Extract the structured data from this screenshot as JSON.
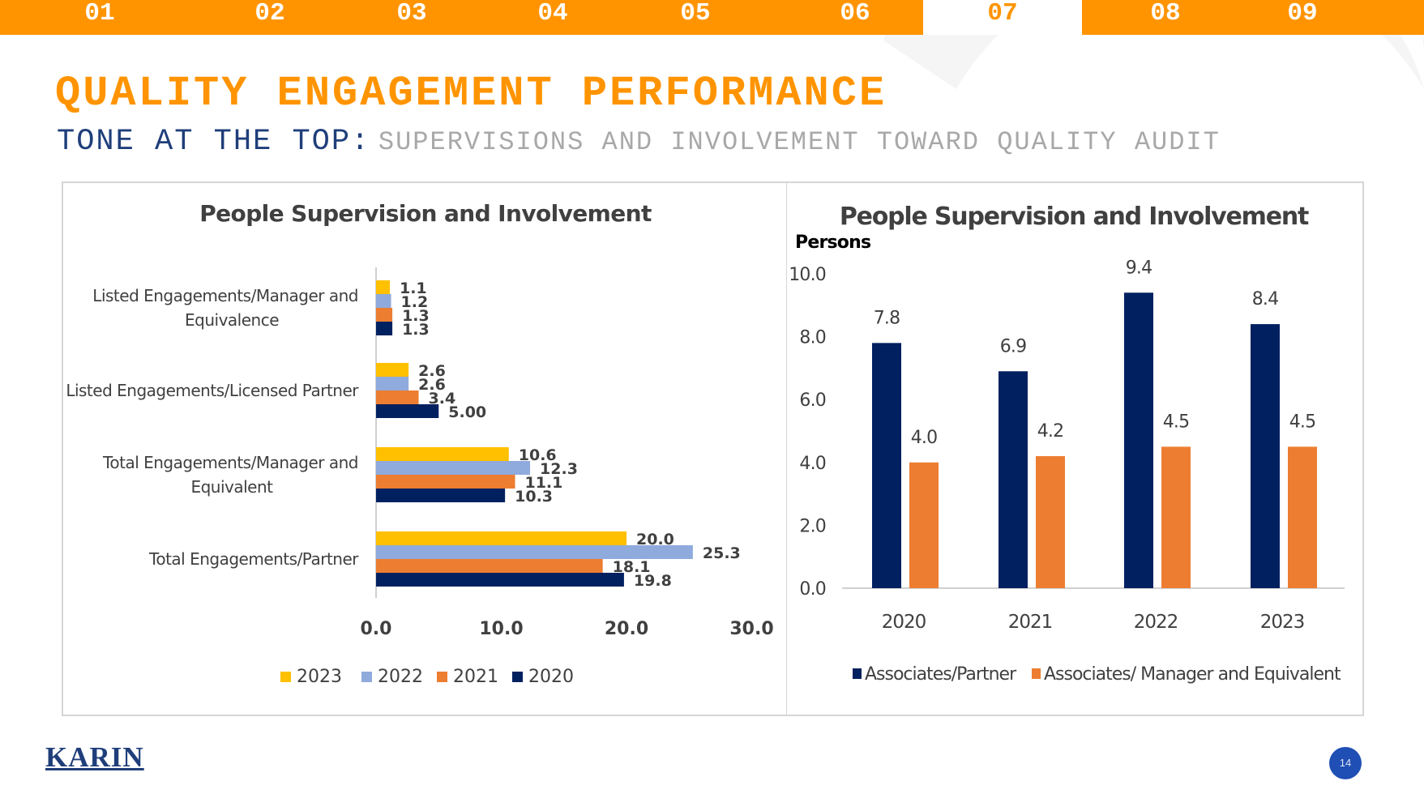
{
  "nav": {
    "tabs": [
      "01",
      "02",
      "03",
      "04",
      "05",
      "06",
      "07",
      "08",
      "09"
    ],
    "active_index": 6
  },
  "header": {
    "title": "QUALITY ENGAGEMENT PERFORMANCE",
    "subtitle_strong": "TONE AT THE TOP:",
    "subtitle_light": "SUPERVISIONS AND INVOLVEMENT TOWARD QUALITY AUDIT"
  },
  "footer": {
    "logo": "KARIN",
    "page_number": "14"
  },
  "colors": {
    "accent": "#ff9400",
    "navy": "#1f3e7a",
    "y2023": "#ffc000",
    "y2022": "#8faadc",
    "y2021": "#ed7d31",
    "y2020": "#002060"
  },
  "chart_data": [
    {
      "type": "bar",
      "orientation": "horizontal",
      "title": "People Supervision and Involvement",
      "categories": [
        "Listed Engagements/Manager and Equivalence",
        "Listed Engagements/Licensed Partner",
        "Total Engagements/Manager and Equivalent",
        "Total Engagements/Partner"
      ],
      "series": [
        {
          "name": "2023",
          "color": "#ffc000",
          "values": [
            1.1,
            2.6,
            10.6,
            20.0
          ],
          "labels": [
            "1.1",
            "2.6",
            "10.6",
            "20.0"
          ]
        },
        {
          "name": "2022",
          "color": "#8faadc",
          "values": [
            1.2,
            2.6,
            12.3,
            25.3
          ],
          "labels": [
            "1.2",
            "2.6",
            "12.3",
            "25.3"
          ]
        },
        {
          "name": "2021",
          "color": "#ed7d31",
          "values": [
            1.3,
            3.4,
            11.1,
            18.1
          ],
          "labels": [
            "1.3",
            "3.4",
            "11.1",
            "18.1"
          ]
        },
        {
          "name": "2020",
          "color": "#002060",
          "values": [
            1.3,
            5.0,
            10.3,
            19.8
          ],
          "labels": [
            "1.3",
            "5.00",
            "10.3",
            "19.8"
          ]
        }
      ],
      "xlim": [
        0,
        30
      ],
      "xticks": [
        "0.0",
        "10.0",
        "20.0",
        "30.0"
      ],
      "legend": [
        "2023",
        "2022",
        "2021",
        "2020"
      ],
      "legend_position": "bottom",
      "grid": false
    },
    {
      "type": "bar",
      "orientation": "vertical",
      "title": "People Supervision and Involvement",
      "ylabel": "Persons",
      "categories": [
        "2020",
        "2021",
        "2022",
        "2023"
      ],
      "series": [
        {
          "name": "Associates/Partner",
          "color": "#002060",
          "values": [
            7.8,
            6.9,
            9.4,
            8.4
          ],
          "labels": [
            "7.8",
            "6.9",
            "9.4",
            "8.4"
          ]
        },
        {
          "name": "Associates/ Manager and Equivalent",
          "color": "#ed7d31",
          "values": [
            4.0,
            4.2,
            4.5,
            4.5
          ],
          "labels": [
            "4.0",
            "4.2",
            "4.5",
            "4.5"
          ]
        }
      ],
      "ylim": [
        0,
        10
      ],
      "yticks": [
        "0.0",
        "2.0",
        "4.0",
        "6.0",
        "8.0",
        "10.0"
      ],
      "legend_position": "bottom",
      "grid": false
    }
  ]
}
